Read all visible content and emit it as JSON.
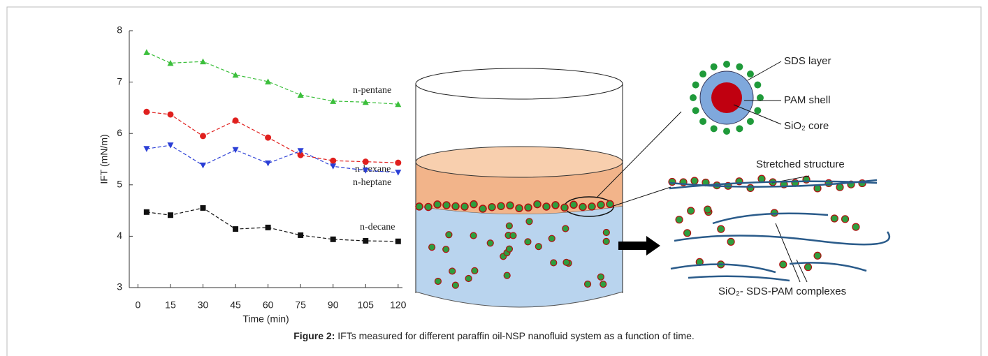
{
  "chart_data": {
    "type": "line",
    "x_label": "Time (min)",
    "y_label": "IFT (mN/m)",
    "x": [
      4,
      15,
      30,
      45,
      60,
      75,
      90,
      105,
      120
    ],
    "series": [
      {
        "name": "n-pentane",
        "color": "#3cbf3c",
        "marker": "triangle",
        "values": [
          7.58,
          7.37,
          7.4,
          7.14,
          7.01,
          6.75,
          6.63,
          6.61,
          6.57
        ]
      },
      {
        "name": "n-hexane",
        "color": "#e0201e",
        "marker": "circle",
        "values": [
          6.42,
          6.37,
          5.95,
          6.25,
          5.92,
          5.58,
          5.47,
          5.45,
          5.43
        ]
      },
      {
        "name": "n-heptane",
        "color": "#2b3fd6",
        "marker": "triangle-down",
        "values": [
          5.7,
          5.77,
          5.38,
          5.68,
          5.42,
          5.66,
          5.36,
          5.28,
          5.24
        ]
      },
      {
        "name": "n-decane",
        "color": "#111111",
        "marker": "square",
        "values": [
          4.47,
          4.41,
          4.55,
          4.14,
          4.17,
          4.02,
          3.94,
          3.91,
          3.9
        ]
      }
    ],
    "xlim": [
      -4,
      122
    ],
    "ylim": [
      3,
      8
    ],
    "xticks": [
      0,
      15,
      30,
      45,
      60,
      75,
      90,
      105,
      120
    ],
    "yticks": [
      3,
      4,
      5,
      6,
      7,
      8
    ]
  },
  "diagram": {
    "labels": [
      "SDS layer",
      "PAM shell",
      "SiO₂ core",
      "Stretched structure",
      "SiO₂- SDS-PAM complexes"
    ]
  },
  "caption": {
    "label": "Figure 2:",
    "text": " IFTs measured for different paraffin oil-NSP nanofluid system as a function of time."
  }
}
